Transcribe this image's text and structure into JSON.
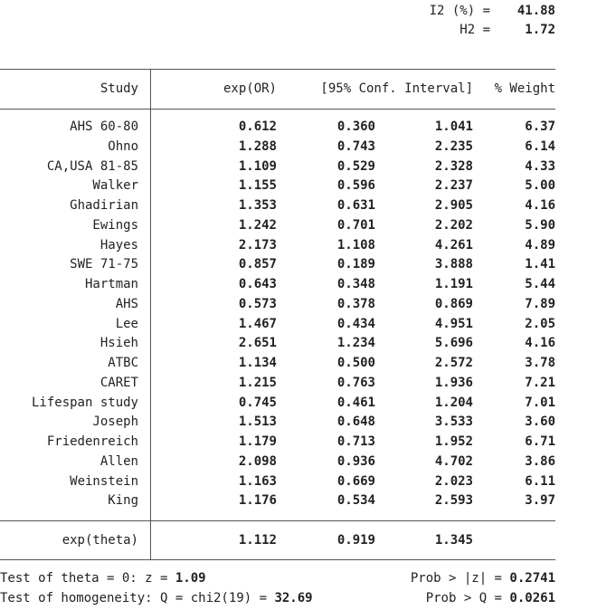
{
  "stats": {
    "i2_label": "I2 (%) =",
    "i2_value": "41.88",
    "h2_label": "H2 =",
    "h2_value": "1.72"
  },
  "table": {
    "headers": [
      "Study",
      "exp(OR)",
      "[95% Conf. Interval]",
      "% Weight"
    ],
    "rows": [
      {
        "study": "AHS 60-80",
        "est": "0.612",
        "lo": "0.360",
        "hi": "1.041",
        "w": "6.37"
      },
      {
        "study": "Ohno",
        "est": "1.288",
        "lo": "0.743",
        "hi": "2.235",
        "w": "6.14"
      },
      {
        "study": "CA,USA 81-85",
        "est": "1.109",
        "lo": "0.529",
        "hi": "2.328",
        "w": "4.33"
      },
      {
        "study": "Walker",
        "est": "1.155",
        "lo": "0.596",
        "hi": "2.237",
        "w": "5.00"
      },
      {
        "study": "Ghadirian",
        "est": "1.353",
        "lo": "0.631",
        "hi": "2.905",
        "w": "4.16"
      },
      {
        "study": "Ewings",
        "est": "1.242",
        "lo": "0.701",
        "hi": "2.202",
        "w": "5.90"
      },
      {
        "study": "Hayes",
        "est": "2.173",
        "lo": "1.108",
        "hi": "4.261",
        "w": "4.89"
      },
      {
        "study": "SWE 71-75",
        "est": "0.857",
        "lo": "0.189",
        "hi": "3.888",
        "w": "1.41"
      },
      {
        "study": "Hartman",
        "est": "0.643",
        "lo": "0.348",
        "hi": "1.191",
        "w": "5.44"
      },
      {
        "study": "AHS",
        "est": "0.573",
        "lo": "0.378",
        "hi": "0.869",
        "w": "7.89"
      },
      {
        "study": "Lee",
        "est": "1.467",
        "lo": "0.434",
        "hi": "4.951",
        "w": "2.05"
      },
      {
        "study": "Hsieh",
        "est": "2.651",
        "lo": "1.234",
        "hi": "5.696",
        "w": "4.16"
      },
      {
        "study": "ATBC",
        "est": "1.134",
        "lo": "0.500",
        "hi": "2.572",
        "w": "3.78"
      },
      {
        "study": "CARET",
        "est": "1.215",
        "lo": "0.763",
        "hi": "1.936",
        "w": "7.21"
      },
      {
        "study": "Lifespan study",
        "est": "0.745",
        "lo": "0.461",
        "hi": "1.204",
        "w": "7.01"
      },
      {
        "study": "Joseph",
        "est": "1.513",
        "lo": "0.648",
        "hi": "3.533",
        "w": "3.60"
      },
      {
        "study": "Friedenreich",
        "est": "1.179",
        "lo": "0.713",
        "hi": "1.952",
        "w": "6.71"
      },
      {
        "study": "Allen",
        "est": "2.098",
        "lo": "0.936",
        "hi": "4.702",
        "w": "3.86"
      },
      {
        "study": "Weinstein",
        "est": "1.163",
        "lo": "0.669",
        "hi": "2.023",
        "w": "6.11"
      },
      {
        "study": "King",
        "est": "1.176",
        "lo": "0.534",
        "hi": "2.593",
        "w": "3.97"
      }
    ],
    "pooled": {
      "label": "exp(theta)",
      "est": "1.112",
      "lo": "0.919",
      "hi": "1.345"
    }
  },
  "tests": {
    "theta_label": "Test of theta = 0: z = ",
    "theta_z": "1.09",
    "theta_p_label": "Prob > |z| = ",
    "theta_p": "0.2741",
    "homog_label": "Test of homogeneity: Q = chi2(19) = ",
    "homog_q": "32.69",
    "homog_p_label": "Prob > Q = ",
    "homog_p": "0.0261"
  }
}
